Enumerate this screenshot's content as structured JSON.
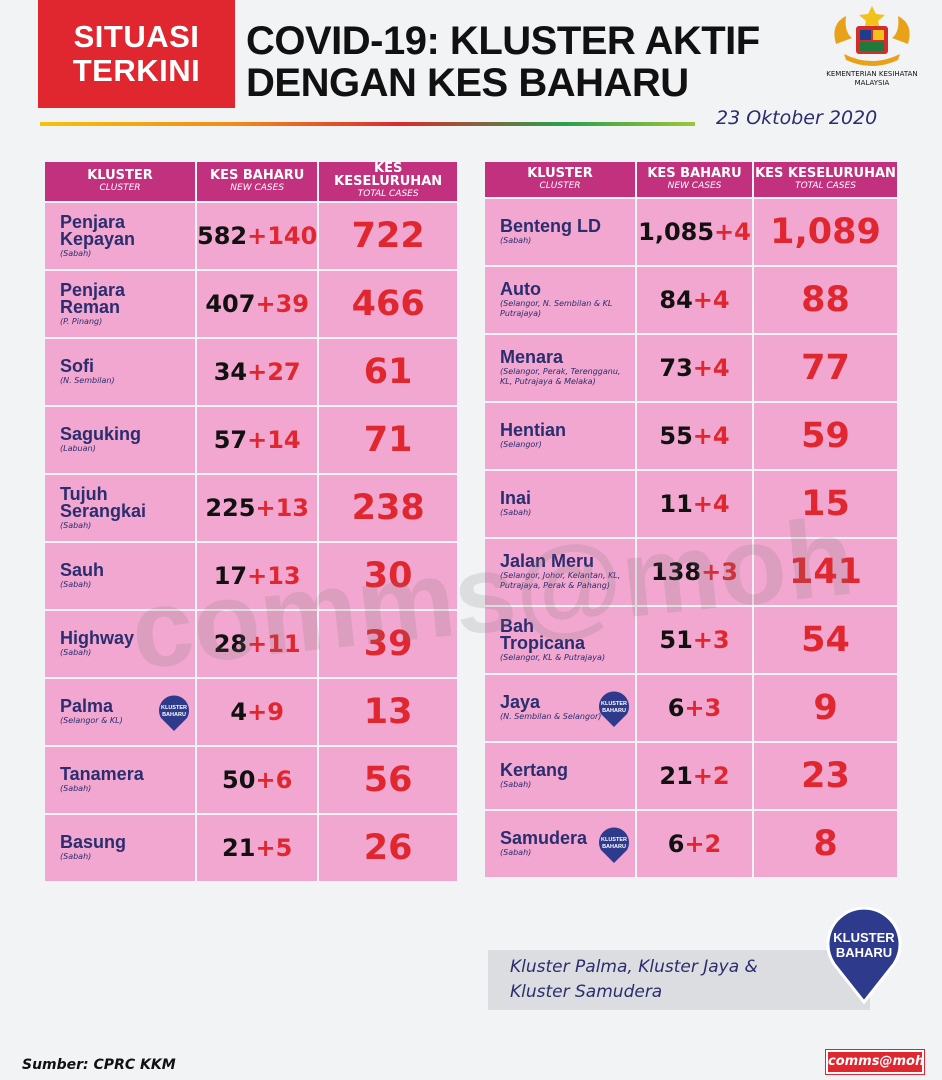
{
  "header": {
    "badge_line1": "SITUASI",
    "badge_line2": "TERKINI",
    "title_line1": "COVID-19: KLUSTER AKTIF",
    "title_line2": "DENGAN KES BAHARU",
    "date": "23 Oktober 2020",
    "ministry_line1": "KEMENTERIAN KESIHATAN",
    "ministry_line2": "MALAYSIA"
  },
  "columns": {
    "kluster": "KLUSTER",
    "kluster_sub": "CLUSTER",
    "kes_baharu": "KES BAHARU",
    "kes_baharu_sub": "NEW CASES",
    "kes_keseluruhan": "KES KESELURUHAN",
    "kes_keseluruhan_sub": "TOTAL CASES"
  },
  "chart_data": {
    "type": "table",
    "title": "COVID-19: KLUSTER AKTIF DENGAN KES BAHARU",
    "date": "23 Oktober 2020",
    "columns": [
      "KLUSTER",
      "KES BAHARU",
      "KES KESELURUHAN"
    ],
    "left": [
      {
        "name_line1": "Penjara",
        "name_line2": "Kepayan",
        "location": "(Sabah)",
        "prev": "582",
        "new": "+140",
        "total": "722",
        "new_cluster": false
      },
      {
        "name_line1": "Penjara",
        "name_line2": "Reman",
        "location": "(P. Pinang)",
        "prev": "407",
        "new": "+39",
        "total": "466",
        "new_cluster": false
      },
      {
        "name_line1": "Sofi",
        "name_line2": "",
        "location": "(N. Sembilan)",
        "prev": "34",
        "new": "+27",
        "total": "61",
        "new_cluster": false
      },
      {
        "name_line1": "Saguking",
        "name_line2": "",
        "location": "(Labuan)",
        "prev": "57",
        "new": "+14",
        "total": "71",
        "new_cluster": false
      },
      {
        "name_line1": "Tujuh",
        "name_line2": "Serangkai",
        "location": "(Sabah)",
        "prev": "225",
        "new": "+13",
        "total": "238",
        "new_cluster": false
      },
      {
        "name_line1": "Sauh",
        "name_line2": "",
        "location": "(Sabah)",
        "prev": "17",
        "new": "+13",
        "total": "30",
        "new_cluster": false
      },
      {
        "name_line1": "Highway",
        "name_line2": "",
        "location": "(Sabah)",
        "prev": "28",
        "new": "+11",
        "total": "39",
        "new_cluster": false
      },
      {
        "name_line1": "Palma",
        "name_line2": "",
        "location": "(Selangor & KL)",
        "prev": "4",
        "new": "+9",
        "total": "13",
        "new_cluster": true
      },
      {
        "name_line1": "Tanamera",
        "name_line2": "",
        "location": "(Sabah)",
        "prev": "50",
        "new": "+6",
        "total": "56",
        "new_cluster": false
      },
      {
        "name_line1": "Basung",
        "name_line2": "",
        "location": "(Sabah)",
        "prev": "21",
        "new": "+5",
        "total": "26",
        "new_cluster": false
      }
    ],
    "right": [
      {
        "name_line1": "Benteng LD",
        "name_line2": "",
        "location": "(Sabah)",
        "prev": "1,085",
        "new": "+4",
        "total": "1,089",
        "new_cluster": false
      },
      {
        "name_line1": "Auto",
        "name_line2": "",
        "location": "(Selangor, N. Sembilan & KL Putrajaya)",
        "prev": "84",
        "new": "+4",
        "total": "88",
        "new_cluster": false
      },
      {
        "name_line1": "Menara",
        "name_line2": "",
        "location": "(Selangor, Perak, Terengganu, KL, Putrajaya & Melaka)",
        "prev": "73",
        "new": "+4",
        "total": "77",
        "new_cluster": false
      },
      {
        "name_line1": "Hentian",
        "name_line2": "",
        "location": "(Selangor)",
        "prev": "55",
        "new": "+4",
        "total": "59",
        "new_cluster": false
      },
      {
        "name_line1": "Inai",
        "name_line2": "",
        "location": "(Sabah)",
        "prev": "11",
        "new": "+4",
        "total": "15",
        "new_cluster": false
      },
      {
        "name_line1": "Jalan Meru",
        "name_line2": "",
        "location": "(Selangor, Johor, Kelantan, KL, Putrajaya, Perak & Pahang)",
        "prev": "138",
        "new": "+3",
        "total": "141",
        "new_cluster": false
      },
      {
        "name_line1": "Bah",
        "name_line2": "Tropicana",
        "location": "(Selangor, KL & Putrajaya)",
        "prev": "51",
        "new": "+3",
        "total": "54",
        "new_cluster": false
      },
      {
        "name_line1": "Jaya",
        "name_line2": "",
        "location": "(N. Sembilan & Selangor)",
        "prev": "6",
        "new": "+3",
        "total": "9",
        "new_cluster": true
      },
      {
        "name_line1": "Kertang",
        "name_line2": "",
        "location": "(Sabah)",
        "prev": "21",
        "new": "+2",
        "total": "23",
        "new_cluster": false
      },
      {
        "name_line1": "Samudera",
        "name_line2": "",
        "location": "(Sabah)",
        "prev": "6",
        "new": "+2",
        "total": "8",
        "new_cluster": true
      }
    ]
  },
  "pin_label_line1": "KLUSTER",
  "pin_label_line2": "BAHARU",
  "note": {
    "line1": "Kluster Palma, Kluster Jaya &",
    "line2": "Kluster Samudera"
  },
  "watermark": "comms@moh",
  "footer": {
    "source": "Sumber: CPRC KKM",
    "brand": "comms@moh"
  },
  "colors": {
    "header_bg": "#c2317d",
    "cell_bg": "#f1a7cf",
    "red": "#e0262e",
    "navy": "#2b2d6e",
    "pin_blue": "#2e3a8c"
  }
}
